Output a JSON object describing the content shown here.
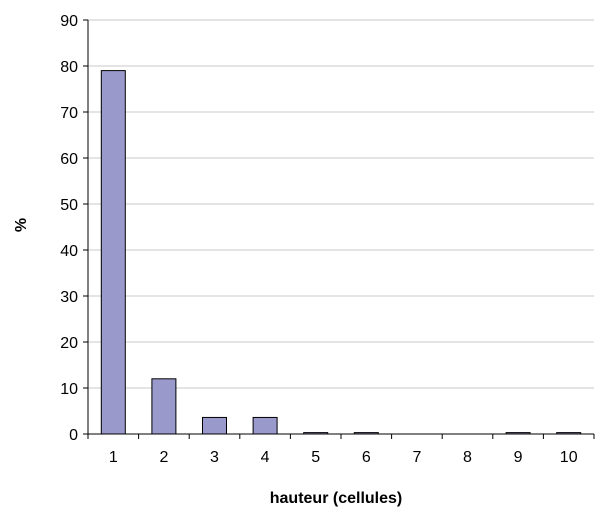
{
  "chart_data": {
    "type": "bar",
    "categories": [
      "1",
      "2",
      "3",
      "4",
      "5",
      "6",
      "7",
      "8",
      "9",
      "10"
    ],
    "values": [
      79,
      12,
      3.6,
      3.6,
      0.3,
      0.3,
      0,
      0,
      0.3,
      0.3
    ],
    "xlabel": "hauteur (cellules)",
    "ylabel": "%",
    "ylim": [
      0,
      90
    ],
    "yticks": [
      "0",
      "10",
      "20",
      "30",
      "40",
      "50",
      "60",
      "70",
      "80",
      "90"
    ],
    "grid": true,
    "legend": "none",
    "colors": {
      "bar_fill": "#9999cc",
      "bar_stroke": "#000000",
      "grid": "#c8c8c8"
    }
  }
}
